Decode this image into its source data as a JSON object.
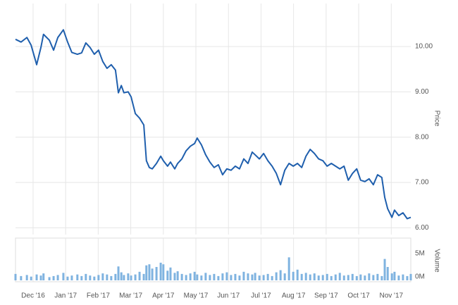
{
  "chart_data": [
    {
      "type": "line",
      "axis_label": "Price",
      "color": "#1f5fad",
      "x": [
        -0.54,
        -0.37,
        -0.19,
        -0.06,
        0.11,
        0.24,
        0.32,
        0.5,
        0.63,
        0.76,
        0.93,
        1.06,
        1.19,
        1.36,
        1.49,
        1.62,
        1.75,
        1.88,
        2.01,
        2.14,
        2.27,
        2.4,
        2.53,
        2.62,
        2.71,
        2.79,
        2.92,
        3.01,
        3.14,
        3.27,
        3.4,
        3.48,
        3.57,
        3.66,
        3.79,
        3.92,
        4.0,
        4.13,
        4.22,
        4.35,
        4.44,
        4.57,
        4.7,
        4.83,
        4.96,
        5.04,
        5.17,
        5.3,
        5.43,
        5.56,
        5.69,
        5.82,
        5.95,
        6.08,
        6.21,
        6.34,
        6.47,
        6.6,
        6.73,
        6.82,
        6.95,
        7.08,
        7.21,
        7.34,
        7.47,
        7.6,
        7.73,
        7.86,
        7.99,
        8.12,
        8.25,
        8.38,
        8.51,
        8.64,
        8.77,
        8.9,
        9.03,
        9.16,
        9.29,
        9.42,
        9.55,
        9.68,
        9.81,
        9.94,
        10.06,
        10.19,
        10.32,
        10.45,
        10.58,
        10.71,
        10.8,
        10.89,
        11.02,
        11.1,
        11.23,
        11.36,
        11.49,
        11.6
      ],
      "values": [
        10.16,
        10.1,
        10.2,
        10.03,
        9.6,
        9.98,
        10.27,
        10.14,
        9.92,
        10.2,
        10.37,
        10.1,
        9.87,
        9.83,
        9.86,
        10.08,
        9.98,
        9.83,
        9.92,
        9.67,
        9.52,
        9.6,
        9.48,
        8.98,
        9.14,
        8.98,
        9.0,
        8.89,
        8.52,
        8.42,
        8.27,
        7.48,
        7.33,
        7.3,
        7.42,
        7.58,
        7.48,
        7.36,
        7.45,
        7.3,
        7.42,
        7.52,
        7.7,
        7.8,
        7.86,
        7.98,
        7.83,
        7.61,
        7.45,
        7.33,
        7.39,
        7.17,
        7.3,
        7.27,
        7.36,
        7.3,
        7.52,
        7.42,
        7.67,
        7.61,
        7.52,
        7.64,
        7.48,
        7.36,
        7.2,
        6.95,
        7.27,
        7.42,
        7.36,
        7.42,
        7.33,
        7.58,
        7.73,
        7.64,
        7.52,
        7.48,
        7.36,
        7.42,
        7.36,
        7.3,
        7.36,
        7.05,
        7.2,
        7.3,
        7.05,
        7.02,
        7.08,
        6.95,
        7.17,
        7.11,
        6.67,
        6.42,
        6.23,
        6.39,
        6.27,
        6.33,
        6.2,
        6.23
      ],
      "xlim": [
        -0.54,
        11.6
      ],
      "ylim": [
        5.85,
        10.95
      ],
      "yticks": [
        {
          "value": 6,
          "label": "6.00"
        },
        {
          "value": 7,
          "label": "7.00"
        },
        {
          "value": 8,
          "label": "8.00"
        },
        {
          "value": 9,
          "label": "9.00"
        },
        {
          "value": 10,
          "label": "10.00"
        }
      ],
      "grid": true
    },
    {
      "type": "bar",
      "axis_label": "Volume",
      "color": "#7fb3e0",
      "x": [
        -0.54,
        -0.37,
        -0.19,
        -0.06,
        0.11,
        0.24,
        0.32,
        0.5,
        0.63,
        0.76,
        0.93,
        1.06,
        1.19,
        1.36,
        1.49,
        1.62,
        1.75,
        1.88,
        2.01,
        2.14,
        2.27,
        2.4,
        2.53,
        2.62,
        2.71,
        2.79,
        2.92,
        3.01,
        3.14,
        3.27,
        3.4,
        3.48,
        3.57,
        3.66,
        3.79,
        3.92,
        4.0,
        4.13,
        4.22,
        4.35,
        4.44,
        4.57,
        4.7,
        4.83,
        4.96,
        5.04,
        5.17,
        5.3,
        5.43,
        5.56,
        5.69,
        5.82,
        5.95,
        6.08,
        6.21,
        6.34,
        6.47,
        6.6,
        6.73,
        6.82,
        6.95,
        7.08,
        7.21,
        7.34,
        7.47,
        7.6,
        7.73,
        7.86,
        7.99,
        8.12,
        8.25,
        8.38,
        8.51,
        8.64,
        8.77,
        8.9,
        9.03,
        9.16,
        9.29,
        9.42,
        9.55,
        9.68,
        9.81,
        9.94,
        10.06,
        10.19,
        10.32,
        10.45,
        10.58,
        10.71,
        10.8,
        10.89,
        11.02,
        11.1,
        11.23,
        11.36,
        11.49,
        11.6
      ],
      "values": [
        1.2,
        0.8,
        1.0,
        0.7,
        1.1,
        0.9,
        1.3,
        0.6,
        0.8,
        1.0,
        1.4,
        0.7,
        0.9,
        1.1,
        0.8,
        1.2,
        0.9,
        0.7,
        1.0,
        1.3,
        1.1,
        0.8,
        1.2,
        2.6,
        1.5,
        1.0,
        1.3,
        0.9,
        1.1,
        1.6,
        1.2,
        2.8,
        3.0,
        2.2,
        2.5,
        3.3,
        3.0,
        1.8,
        2.4,
        1.4,
        1.7,
        1.2,
        1.0,
        1.3,
        1.6,
        1.1,
        0.9,
        1.4,
        1.0,
        1.2,
        0.8,
        1.3,
        1.5,
        1.0,
        1.2,
        0.9,
        1.6,
        1.3,
        1.1,
        1.4,
        0.9,
        1.0,
        1.2,
        0.8,
        1.5,
        1.9,
        1.3,
        4.3,
        1.6,
        2.0,
        1.2,
        1.4,
        1.1,
        1.3,
        0.9,
        1.0,
        1.2,
        0.8,
        1.1,
        1.4,
        0.9,
        1.0,
        1.2,
        0.8,
        1.1,
        0.9,
        1.3,
        1.0,
        1.2,
        0.8,
        4.0,
        2.5,
        1.3,
        1.6,
        0.9,
        1.1,
        0.8,
        1.2
      ],
      "xlim": [
        -0.54,
        11.6
      ],
      "ylim": [
        0,
        7.9
      ],
      "yticks": [
        {
          "value": 0,
          "label": "0M"
        },
        {
          "value": 5,
          "label": "5M"
        }
      ],
      "xticks": [
        {
          "value": 0,
          "label": "Dec '16"
        },
        {
          "value": 1,
          "label": "Jan '17"
        },
        {
          "value": 2,
          "label": "Feb '17"
        },
        {
          "value": 3,
          "label": "Mar '17"
        },
        {
          "value": 4,
          "label": "Apr '17"
        },
        {
          "value": 5,
          "label": "May '17"
        },
        {
          "value": 6,
          "label": "Jun '17"
        },
        {
          "value": 7,
          "label": "Jul '17"
        },
        {
          "value": 8,
          "label": "Aug '17"
        },
        {
          "value": 9,
          "label": "Sep '17"
        },
        {
          "value": 10,
          "label": "Oct '17"
        },
        {
          "value": 11,
          "label": "Nov '17"
        }
      ]
    }
  ]
}
